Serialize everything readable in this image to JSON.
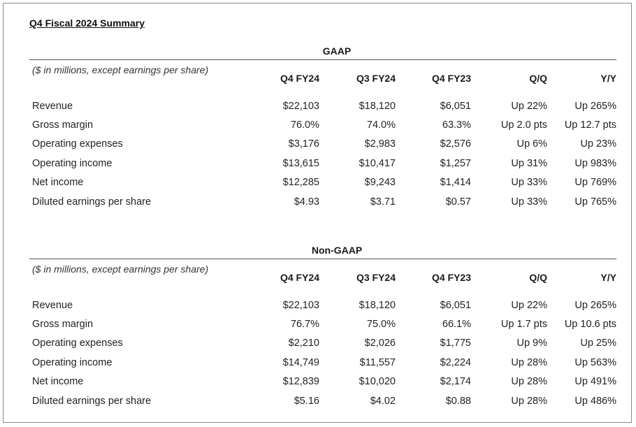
{
  "title": "Q4 Fiscal 2024 Summary",
  "tables": [
    {
      "section": "GAAP",
      "header_label": "($ in millions, except earnings per share)",
      "columns": [
        "Q4 FY24",
        "Q3 FY24",
        "Q4 FY23",
        "Q/Q",
        "Y/Y"
      ],
      "rows": [
        {
          "label": "Revenue",
          "values": [
            "$22,103",
            "$18,120",
            "$6,051",
            "Up 22%",
            "Up 265%"
          ]
        },
        {
          "label": "Gross margin",
          "values": [
            "76.0%",
            "74.0%",
            "63.3%",
            "Up 2.0 pts",
            "Up 12.7 pts"
          ]
        },
        {
          "label": "Operating expenses",
          "values": [
            "$3,176",
            "$2,983",
            "$2,576",
            "Up 6%",
            "Up 23%"
          ]
        },
        {
          "label": "Operating income",
          "values": [
            "$13,615",
            "$10,417",
            "$1,257",
            "Up 31%",
            "Up 983%"
          ]
        },
        {
          "label": "Net income",
          "values": [
            "$12,285",
            "$9,243",
            "$1,414",
            "Up 33%",
            "Up 769%"
          ]
        },
        {
          "label": "Diluted earnings per share",
          "values": [
            "$4.93",
            "$3.71",
            "$0.57",
            "Up 33%",
            "Up 765%"
          ]
        }
      ]
    },
    {
      "section": "Non-GAAP",
      "header_label": "($ in millions, except earnings per share)",
      "columns": [
        "Q4 FY24",
        "Q3 FY24",
        "Q4 FY23",
        "Q/Q",
        "Y/Y"
      ],
      "rows": [
        {
          "label": "Revenue",
          "values": [
            "$22,103",
            "$18,120",
            "$6,051",
            "Up 22%",
            "Up 265%"
          ]
        },
        {
          "label": "Gross margin",
          "values": [
            "76.7%",
            "75.0%",
            "66.1%",
            "Up 1.7 pts",
            "Up 10.6 pts"
          ]
        },
        {
          "label": "Operating expenses",
          "values": [
            "$2,210",
            "$2,026",
            "$1,775",
            "Up 9%",
            "Up 25%"
          ]
        },
        {
          "label": "Operating income",
          "values": [
            "$14,749",
            "$11,557",
            "$2,224",
            "Up 28%",
            "Up 563%"
          ]
        },
        {
          "label": "Net income",
          "values": [
            "$12,839",
            "$10,020",
            "$2,174",
            "Up 28%",
            "Up 491%"
          ]
        },
        {
          "label": "Diluted earnings per share",
          "values": [
            "$5.16",
            "$4.02",
            "$0.88",
            "Up 28%",
            "Up 486%"
          ]
        }
      ]
    }
  ]
}
